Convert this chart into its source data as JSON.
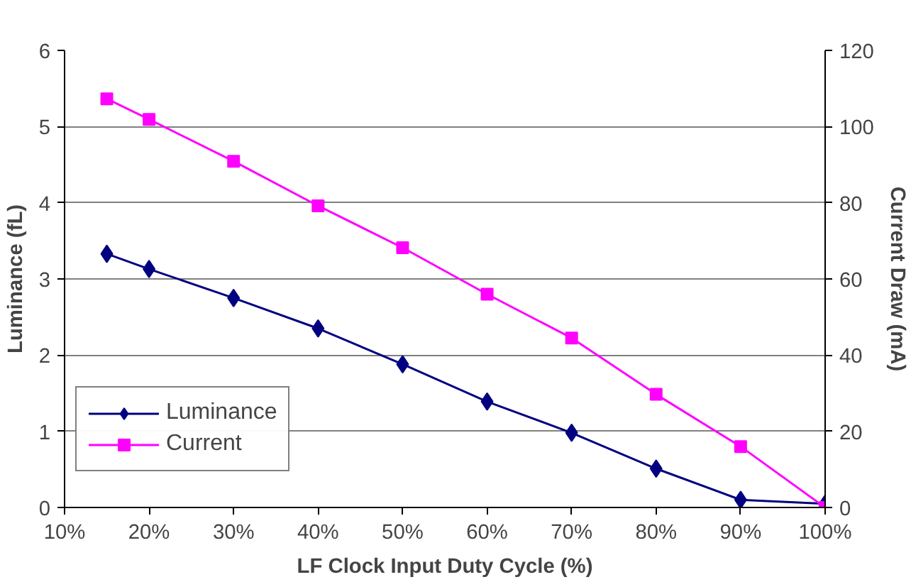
{
  "chart_data": {
    "type": "line",
    "xlabel": "LF Clock Input Duty Cycle (%)",
    "ylabel": "Luminance (fL)",
    "y2label": "Current Draw (mA)",
    "x": [
      15,
      20,
      30,
      40,
      50,
      60,
      70,
      80,
      90,
      100
    ],
    "xlim": [
      10,
      100
    ],
    "xticks": [
      {
        "value": 10,
        "label": "10%"
      },
      {
        "value": 20,
        "label": "20%"
      },
      {
        "value": 30,
        "label": "30%"
      },
      {
        "value": 40,
        "label": "40%"
      },
      {
        "value": 50,
        "label": "50%"
      },
      {
        "value": 60,
        "label": "60%"
      },
      {
        "value": 70,
        "label": "70%"
      },
      {
        "value": 80,
        "label": "80%"
      },
      {
        "value": 90,
        "label": "90%"
      },
      {
        "value": 100,
        "label": "100%"
      }
    ],
    "ylim": [
      0,
      6
    ],
    "yticks": [
      0,
      1,
      2,
      3,
      4,
      5,
      6
    ],
    "y2lim": [
      0,
      120
    ],
    "y2ticks": [
      0,
      20,
      40,
      60,
      80,
      100,
      120
    ],
    "grid": "y",
    "legend": "bottom left",
    "line_style": "solid",
    "series": [
      {
        "name": "Luminance",
        "color": "#000080",
        "marker": "diamond",
        "values": [
          3.33,
          3.13,
          2.75,
          2.35,
          1.88,
          1.39,
          0.98,
          0.51,
          0.1,
          0.05
        ]
      },
      {
        "name": "Current",
        "color": "#ff00ff",
        "marker": "square",
        "axis": "y2",
        "values": [
          107.3,
          101.9,
          90.9,
          79.2,
          68.2,
          56,
          44.5,
          29.7,
          16,
          0
        ]
      }
    ]
  }
}
